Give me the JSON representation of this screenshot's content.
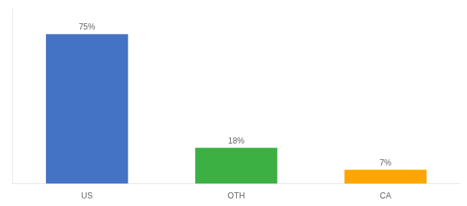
{
  "chart_data": {
    "type": "bar",
    "categories": [
      "US",
      "OTH",
      "CA"
    ],
    "values": [
      75,
      18,
      7
    ],
    "value_labels": [
      "75%",
      "18%",
      "7%"
    ],
    "colors": [
      "#4472C4",
      "#3CB043",
      "#FFA500"
    ],
    "ylim": [
      0,
      88
    ],
    "grid": false,
    "data_labels": true,
    "tick_labels": "x"
  }
}
